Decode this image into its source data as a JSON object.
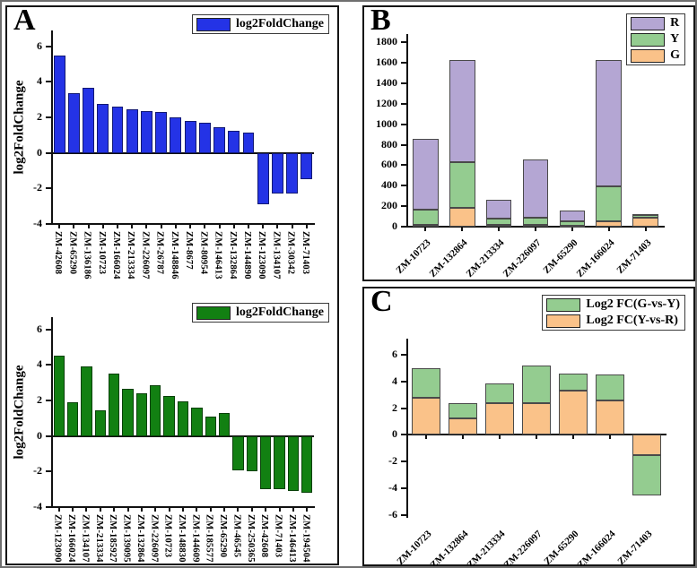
{
  "figure": {
    "panels": {
      "a": {
        "letter": "A"
      },
      "b": {
        "letter": "B"
      },
      "c": {
        "letter": "C"
      }
    }
  },
  "colors": {
    "blue": "#2433e6",
    "dark_green": "#128012",
    "purple": "#b4a6d3",
    "light_green": "#94cc90",
    "orange": "#fac289"
  },
  "chart_data": [
    {
      "id": "a_top",
      "type": "bar",
      "ylabel": "log2FoldChange",
      "legend": [
        {
          "label": "log2FoldChange",
          "color": "#2433e6"
        }
      ],
      "categories": [
        "ZM-42608",
        "ZM-65290",
        "ZM-136186",
        "ZM-10723",
        "ZM-166024",
        "ZM-213334",
        "ZM-226097",
        "ZM-26787",
        "ZM-148846",
        "ZM-8677",
        "ZM-80954",
        "ZM-146413",
        "ZM-132864",
        "ZM-144890",
        "ZM-123090",
        "ZM-134107",
        "ZM-30342",
        "ZM-71403"
      ],
      "values": [
        5.5,
        3.35,
        3.65,
        2.75,
        2.6,
        2.45,
        2.35,
        2.3,
        2.0,
        1.8,
        1.7,
        1.45,
        1.25,
        1.15,
        -2.9,
        -2.3,
        -2.3,
        -1.5
      ],
      "bar_color": "#2433e6",
      "ylim": [
        -4,
        6.9
      ],
      "yticks": [
        -4,
        -2,
        0,
        2,
        4,
        6
      ],
      "zero_line": true,
      "label_style": "vertical",
      "bar_frac": 0.8,
      "grid": false,
      "legend_position": "top-right"
    },
    {
      "id": "a_bottom",
      "type": "bar",
      "ylabel": "log2FoldChange",
      "legend": [
        {
          "label": "log2FoldChange",
          "color": "#128012"
        }
      ],
      "categories": [
        "ZM-123090",
        "ZM-166024",
        "ZM-134107",
        "ZM-213334",
        "ZM-185927",
        "ZM-139095",
        "ZM-132864",
        "ZM-226097",
        "ZM-10723",
        "ZM-148830",
        "ZM-144609",
        "ZM-185577",
        "ZM-65290",
        "ZM-46545",
        "ZM-250365",
        "ZM-42608",
        "ZM-71403",
        "ZM-146413",
        "ZM-194504"
      ],
      "values": [
        4.55,
        1.9,
        3.9,
        1.45,
        3.5,
        2.65,
        2.4,
        2.85,
        2.25,
        1.95,
        1.6,
        1.1,
        1.3,
        -1.95,
        -2.0,
        -3.0,
        -3.0,
        -3.1,
        -3.2
      ],
      "bar_color": "#128012",
      "ylim": [
        -4,
        6.7
      ],
      "yticks": [
        -4,
        -2,
        0,
        2,
        4,
        6
      ],
      "zero_line": true,
      "label_style": "vertical",
      "bar_frac": 0.8,
      "grid": false,
      "legend_position": "top-right"
    },
    {
      "id": "b",
      "type": "stacked-bar",
      "ylabel": "",
      "legend": [
        {
          "label": "R",
          "color": "#b4a6d3"
        },
        {
          "label": "Y",
          "color": "#94cc90"
        },
        {
          "label": "G",
          "color": "#fac289"
        }
      ],
      "categories": [
        "ZM-10723",
        "ZM-132864",
        "ZM-213334",
        "ZM-226097",
        "ZM-65290",
        "ZM-166024",
        "ZM-71403"
      ],
      "series": [
        {
          "name": "G",
          "color": "#fac289",
          "values": [
            20,
            185,
            15,
            20,
            8,
            50,
            90
          ]
        },
        {
          "name": "Y",
          "color": "#94cc90",
          "values": [
            145,
            445,
            65,
            70,
            42,
            340,
            25
          ]
        },
        {
          "name": "R",
          "color": "#b4a6d3",
          "values": [
            695,
            1000,
            180,
            570,
            110,
            1240,
            5
          ]
        }
      ],
      "totals": [
        860,
        1630,
        260,
        660,
        160,
        1630,
        120
      ],
      "ylim": [
        0,
        1880
      ],
      "yticks": [
        0,
        200,
        400,
        600,
        800,
        1000,
        1200,
        1400,
        1600,
        1800
      ],
      "zero_line": false,
      "label_style": "diag",
      "bar_frac": 0.7,
      "grid": false,
      "legend_position": "top-right"
    },
    {
      "id": "c",
      "type": "stacked-bar",
      "ylabel": "",
      "legend": [
        {
          "label": "Log2 FC(G-vs-Y)",
          "color": "#94cc90"
        },
        {
          "label": "Log2 FC(Y-vs-R)",
          "color": "#fac289"
        }
      ],
      "categories": [
        "ZM-10723",
        "ZM-132864",
        "ZM-213334",
        "ZM-226097",
        "ZM-65290",
        "ZM-166024",
        "ZM-71403"
      ],
      "series": [
        {
          "name": "Log2 FC(Y-vs-R)",
          "color": "#fac289",
          "values": [
            2.75,
            1.25,
            2.4,
            2.35,
            3.3,
            2.6,
            -1.5
          ]
        },
        {
          "name": "Log2 FC(G-vs-Y)",
          "color": "#94cc90",
          "values": [
            2.25,
            1.15,
            1.45,
            2.85,
            1.3,
            1.9,
            -3.05
          ]
        }
      ],
      "totals": [
        5.0,
        2.4,
        3.85,
        5.2,
        4.6,
        4.5,
        -4.55
      ],
      "ylim": [
        -6.2,
        7.2
      ],
      "yticks": [
        -6,
        -4,
        -2,
        0,
        2,
        4,
        6
      ],
      "zero_line": false,
      "xspine_at": "zero",
      "label_style": "diag",
      "bar_frac": 0.78,
      "grid": false,
      "legend_position": "top-right"
    }
  ]
}
